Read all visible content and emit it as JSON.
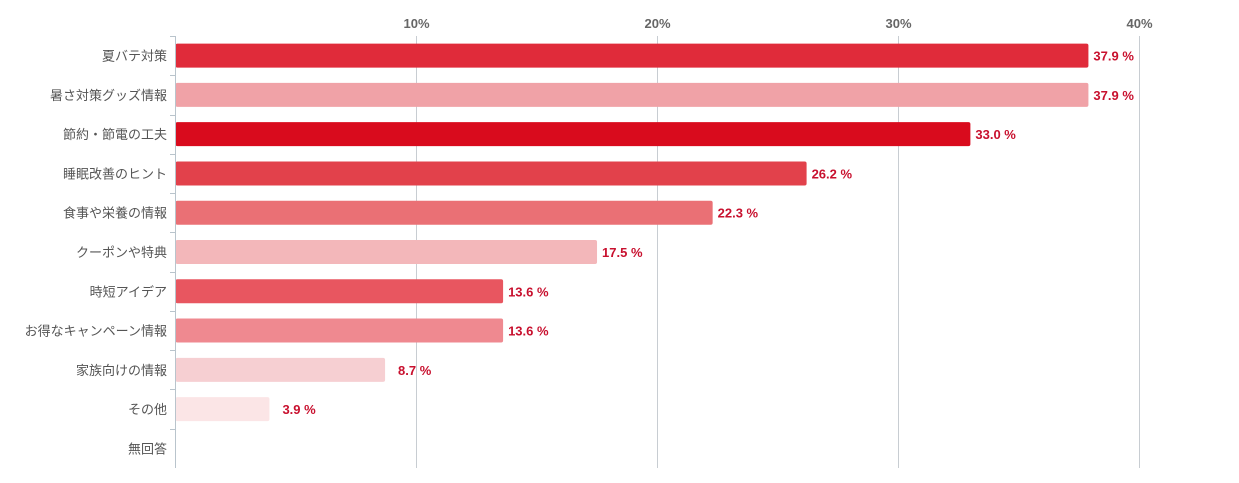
{
  "chart_data": {
    "type": "bar",
    "orientation": "horizontal",
    "title": "",
    "xlabel": "",
    "ylabel": "",
    "xlim": [
      0,
      40
    ],
    "x_ticks": [
      "10%",
      "20%",
      "30%",
      "40%"
    ],
    "x_tick_values": [
      10,
      20,
      30,
      40
    ],
    "grid": true,
    "legend": "none",
    "value_suffix": " %",
    "categories": [
      "夏バテ対策",
      "暑さ対策グッズ情報",
      "節約・節電の工夫",
      "睡眠改善のヒント",
      "食事や栄養の情報",
      "クーポンや特典",
      "時短アイデア",
      "お得なキャンペーン情報",
      "家族向けの情報",
      "その他",
      "無回答"
    ],
    "values": [
      37.9,
      37.9,
      33.0,
      26.2,
      22.3,
      17.5,
      13.6,
      13.6,
      8.7,
      3.9,
      null
    ],
    "value_labels": [
      "37.9 %",
      "37.9 %",
      "33.0 %",
      "26.2 %",
      "22.3 %",
      "17.5 %",
      "13.6 %",
      "13.6 %",
      "8.7 %",
      "3.9 %",
      ""
    ],
    "colors": [
      "#e02b3a",
      "#f0a2a7",
      "#d90b1d",
      "#e2414b",
      "#ea7075",
      "#f3b7ba",
      "#e85660",
      "#ef8990",
      "#f6cfd2",
      "#fbe5e6",
      "#ffffff"
    ]
  }
}
